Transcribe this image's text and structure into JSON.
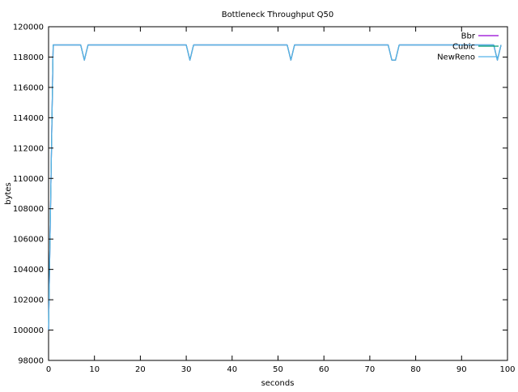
{
  "chart_data": {
    "type": "line",
    "title": "Bottleneck Throughput Q50",
    "xlabel": "seconds",
    "ylabel": "bytes",
    "xlim": [
      0,
      100
    ],
    "ylim": [
      98000,
      120000
    ],
    "xticks": [
      0,
      10,
      20,
      30,
      40,
      50,
      60,
      70,
      80,
      90,
      100
    ],
    "yticks": [
      98000,
      100000,
      102000,
      104000,
      106000,
      108000,
      110000,
      112000,
      114000,
      116000,
      118000,
      120000
    ],
    "grid": false,
    "legend_position": "top-right",
    "series": [
      {
        "name": "Bbr",
        "color": "#9400d3",
        "x": [
          0,
          1,
          7,
          7.8,
          8.6,
          30,
          30.8,
          31.6,
          52,
          52.8,
          53.6,
          74,
          74.8,
          75.6,
          76.4,
          97,
          97.8,
          98.6
        ],
        "y": [
          100000,
          118800,
          118800,
          117800,
          118800,
          118800,
          117800,
          118800,
          118800,
          117800,
          118800,
          118800,
          117800,
          117800,
          118800,
          118800,
          117800,
          118800
        ]
      },
      {
        "name": "Cubic",
        "color": "#009e73",
        "x": [
          0,
          1,
          7,
          7.8,
          8.6,
          30,
          30.8,
          31.6,
          52,
          52.8,
          53.6,
          74,
          74.8,
          75.6,
          76.4,
          97,
          97.8,
          98.6
        ],
        "y": [
          100000,
          118800,
          118800,
          117800,
          118800,
          118800,
          117800,
          118800,
          118800,
          117800,
          118800,
          118800,
          117800,
          117800,
          118800,
          118800,
          117800,
          118800
        ]
      },
      {
        "name": "NewReno",
        "color": "#56b4e9",
        "x": [
          0,
          1,
          7,
          7.8,
          8.6,
          30,
          30.8,
          31.6,
          52,
          52.8,
          53.6,
          74,
          74.8,
          75.6,
          76.4,
          97,
          97.8,
          98.6
        ],
        "y": [
          100000,
          118800,
          118800,
          117800,
          118800,
          118800,
          117800,
          118800,
          118800,
          117800,
          118800,
          118800,
          117800,
          117800,
          118800,
          118800,
          117800,
          118800
        ]
      }
    ]
  }
}
